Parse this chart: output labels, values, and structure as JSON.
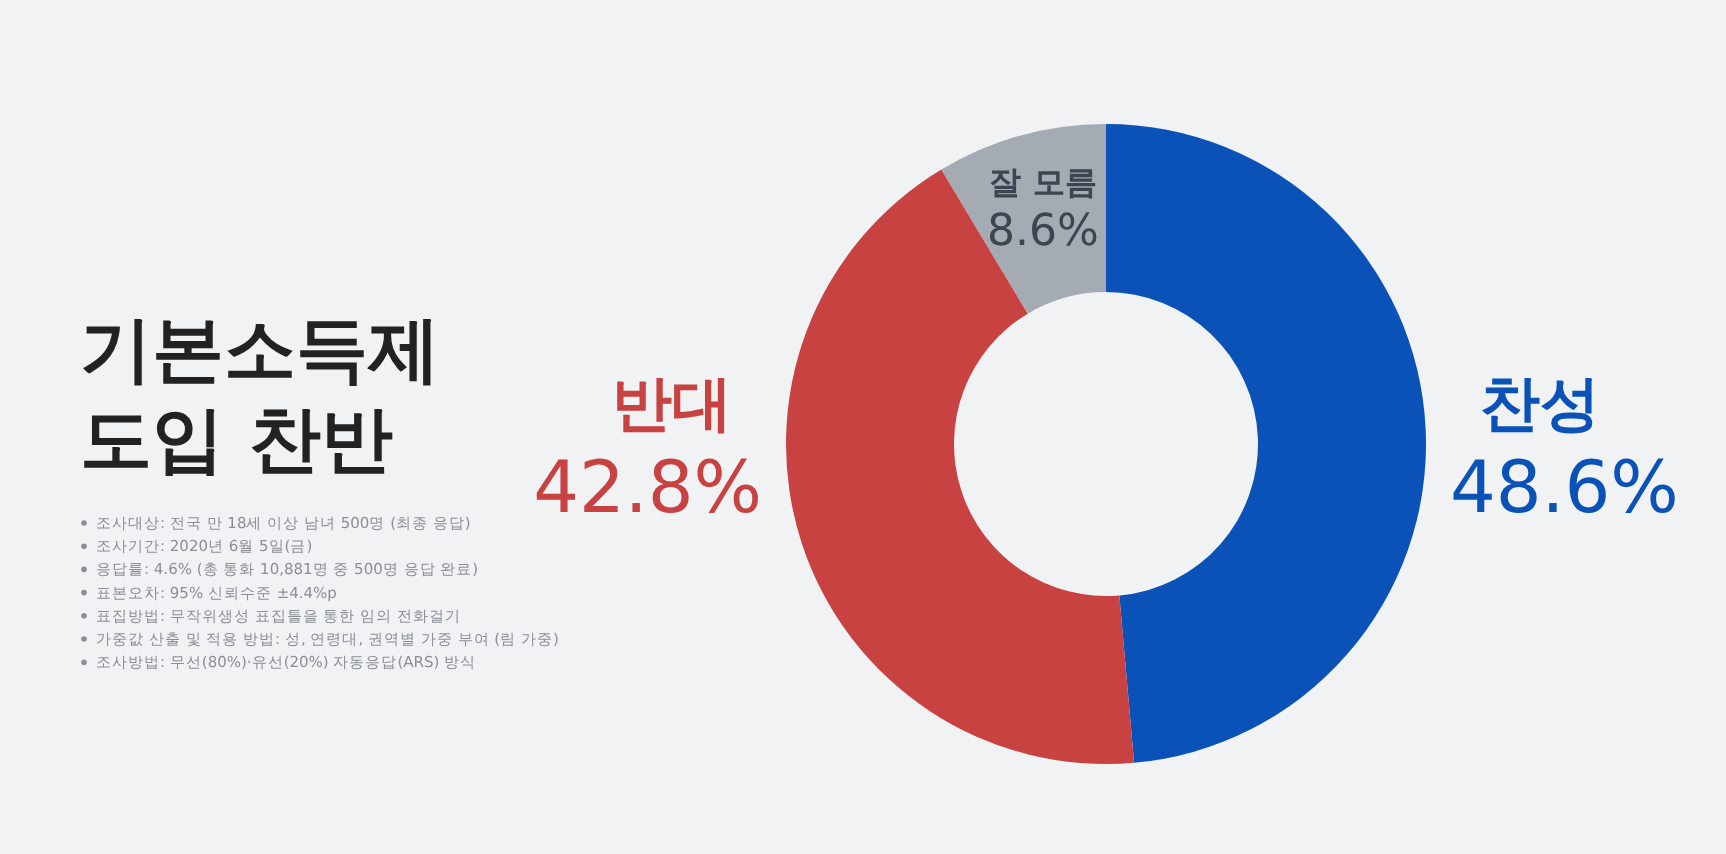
{
  "chart_data": {
    "type": "donut",
    "title": "기본소득제\n도입 찬반",
    "categories": [
      "찬성",
      "반대",
      "잘 모름"
    ],
    "values": [
      48.6,
      42.8,
      8.6
    ],
    "colors": [
      "#0a52b8",
      "#c84242",
      "#a4abb3"
    ],
    "value_labels": [
      "48.6%",
      "42.8%",
      "8.6%"
    ],
    "annotations": [
      "조사대상: 전국 만 18세 이상 남녀 500명 (최종 응답)",
      "조사기간: 2020년 6월 5일(금)",
      "응답률: 4.6% (총 통화 10,881명 중 500명 응답 완료)",
      "표본오차: 95% 신뢰수준 ±4.4%p",
      "표집방법: 무작위생성 표집틀을 통한 임의 전화걸기",
      "가중값 산출 및 적용 방법: 성, 연령대, 권역별 가중 부여 (림 가중)",
      "조사방법: 무선(80%)·유선(20%) 자동응답(ARS) 방식"
    ]
  }
}
